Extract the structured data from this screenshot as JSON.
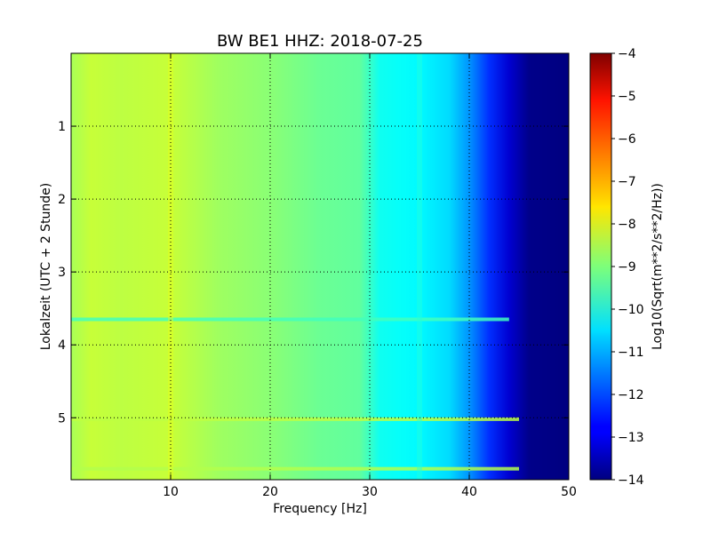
{
  "chart_data": {
    "type": "heatmap",
    "title": "BW BE1 HHZ: 2018-07-25",
    "xlabel": "Frequency [Hz]",
    "ylabel": "Lokalzeit (UTC + 2 Stunde)",
    "xlim": [
      0,
      50
    ],
    "ylim": [
      5.85,
      0
    ],
    "x_ticks": [
      10,
      20,
      30,
      40,
      50
    ],
    "x_tick_labels": [
      "10",
      "20",
      "30",
      "40",
      "50"
    ],
    "y_ticks": [
      1,
      2,
      3,
      4,
      5
    ],
    "y_tick_labels": [
      "1",
      "2",
      "3",
      "4",
      "5"
    ],
    "grid": true,
    "colorbar": {
      "label": "Log10(Sqrt(m**2/s**2/Hz))",
      "range": [
        -14,
        -4
      ],
      "ticks": [
        -4,
        -5,
        -6,
        -7,
        -8,
        -9,
        -10,
        -11,
        -12,
        -13,
        -14
      ],
      "tick_labels": [
        "−4",
        "−5",
        "−6",
        "−7",
        "−8",
        "−9",
        "−10",
        "−11",
        "−12",
        "−13",
        "−14"
      ],
      "colormap": "jet"
    },
    "spectrum_profile": {
      "frequency_hz": [
        0,
        2,
        5,
        10,
        15,
        20,
        25,
        29,
        31,
        33,
        35,
        38,
        40,
        42,
        44,
        46,
        50
      ],
      "log10_amplitude": [
        -8.6,
        -8.3,
        -8.4,
        -8.3,
        -8.7,
        -8.9,
        -9.2,
        -9.3,
        -10.1,
        -10.2,
        -10.3,
        -10.6,
        -11.3,
        -12.3,
        -13.2,
        -13.9,
        -14.0
      ]
    },
    "horizontal_features": [
      {
        "time_h": 3.65,
        "log10_amplitude": -9.6,
        "fmax_hz": 44
      },
      {
        "time_h": 5.02,
        "log10_amplitude": -8.4,
        "fmax_hz": 45
      },
      {
        "time_h": 5.7,
        "log10_amplitude": -8.5,
        "fmax_hz": 45
      }
    ],
    "vertical_features": [
      {
        "frequency_hz": 10,
        "log10_amplitude": -8.0
      },
      {
        "frequency_hz": 35,
        "log10_amplitude": -9.9
      }
    ]
  }
}
